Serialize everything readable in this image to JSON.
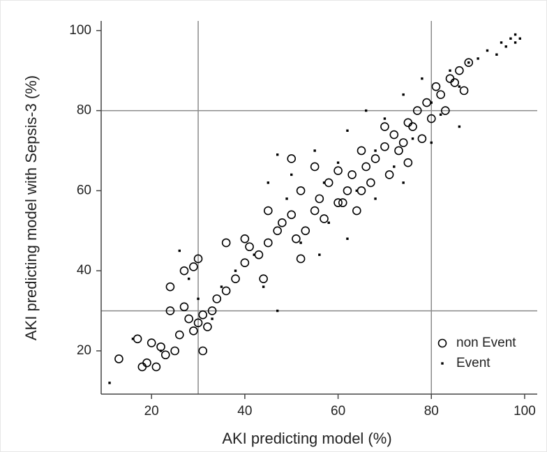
{
  "chart_data": {
    "type": "scatter",
    "x_label": "AKI predicting model (%)",
    "y_label": "AKI predicting model with Sepsis-3 (%)",
    "xlim": [
      9.2,
      102.7
    ],
    "ylim": [
      9.2,
      102.4
    ],
    "xticks": [
      20,
      40,
      60,
      80,
      100
    ],
    "yticks": [
      20,
      40,
      60,
      80,
      100
    ],
    "ref_lines": {
      "x": [
        30,
        80
      ],
      "y": [
        30,
        80
      ]
    },
    "legend": "bottom-right",
    "series": [
      {
        "name": "non Event",
        "marker": "circle",
        "color": "#000000",
        "x": [
          13,
          17,
          18,
          19,
          20,
          21,
          22,
          23,
          24,
          25,
          26,
          27,
          28,
          29,
          30,
          30,
          31,
          31,
          32,
          33,
          24,
          27,
          29,
          34,
          36,
          38,
          40,
          41,
          43,
          45,
          47,
          48,
          50,
          51,
          52,
          53,
          55,
          56,
          57,
          58,
          60,
          61,
          62,
          63,
          64,
          65,
          66,
          67,
          68,
          70,
          71,
          72,
          73,
          74,
          75,
          76,
          77,
          78,
          79,
          80,
          81,
          82,
          83,
          84,
          85,
          86,
          87,
          88,
          40,
          45,
          50,
          55,
          60,
          65,
          70,
          75,
          36,
          44,
          52
        ],
        "values": [
          18,
          23,
          16,
          17,
          22,
          16,
          21,
          19,
          36,
          20,
          24,
          31,
          28,
          25,
          27,
          43,
          29,
          20,
          26,
          30,
          30,
          40,
          41,
          33,
          35,
          38,
          42,
          46,
          44,
          47,
          50,
          52,
          54,
          48,
          60,
          50,
          55,
          58,
          53,
          62,
          65,
          57,
          60,
          64,
          55,
          70,
          66,
          62,
          68,
          71,
          64,
          74,
          70,
          72,
          77,
          76,
          80,
          73,
          82,
          78,
          86,
          84,
          80,
          88,
          87,
          90,
          85,
          92,
          48,
          55,
          68,
          66,
          57,
          60,
          76,
          67,
          47,
          38,
          43
        ]
      },
      {
        "name": "Event",
        "marker": "dot",
        "color": "#000000",
        "x": [
          11,
          16,
          22,
          26,
          28,
          30,
          33,
          35,
          38,
          42,
          45,
          47,
          49,
          52,
          55,
          58,
          60,
          62,
          64,
          66,
          68,
          70,
          72,
          74,
          76,
          78,
          80,
          82,
          84,
          86,
          88,
          90,
          92,
          94,
          95,
          96,
          97,
          98,
          98,
          99,
          44,
          50,
          56,
          62,
          68,
          74,
          80,
          86,
          47,
          57
        ],
        "values": [
          12,
          23,
          20,
          45,
          38,
          33,
          28,
          36,
          40,
          44,
          62,
          30,
          58,
          47,
          70,
          52,
          67,
          75,
          60,
          80,
          70,
          78,
          66,
          84,
          73,
          88,
          82,
          79,
          90,
          86,
          92,
          93,
          95,
          94,
          97,
          96,
          98,
          97,
          99,
          98,
          36,
          64,
          44,
          48,
          58,
          62,
          72,
          76,
          69,
          62
        ]
      }
    ]
  }
}
